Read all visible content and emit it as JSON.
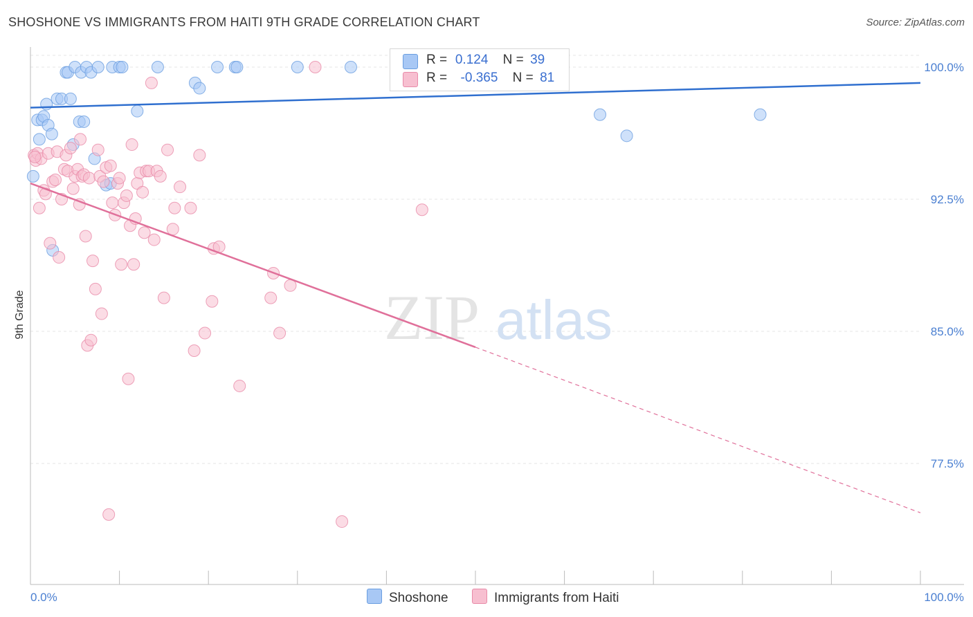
{
  "title": "SHOSHONE VS IMMIGRANTS FROM HAITI 9TH GRADE CORRELATION CHART",
  "source": "Source: ZipAtlas.com",
  "watermark": {
    "zip": "ZIP",
    "atlas": "atlas"
  },
  "legend": {
    "r_label": "R =",
    "n_label": "N =",
    "rows": [
      {
        "r": "0.124",
        "n": "39",
        "color": "#a8c8f5",
        "border": "#6a9ee0"
      },
      {
        "r": "-0.365",
        "n": "81",
        "color": "#f7bfd0",
        "border": "#e88aa8"
      }
    ]
  },
  "chart_data": {
    "type": "scatter",
    "title": "SHOSHONE VS IMMIGRANTS FROM HAITI 9TH GRADE CORRELATION CHART",
    "xlabel": "",
    "ylabel": "9th Grade",
    "xlim": [
      0,
      100
    ],
    "ylim": [
      71.0,
      101.0
    ],
    "x_tick_labels": [
      "0.0%",
      "100.0%"
    ],
    "y_ticks": [
      77.5,
      85.0,
      92.5,
      100.0
    ],
    "y_tick_labels": [
      "77.5%",
      "85.0%",
      "92.5%",
      "100.0%"
    ],
    "grid": true,
    "legend_position": "top-center",
    "series": [
      {
        "name": "Shoshone",
        "color": "#6a9ee0",
        "fill": "#a8c8f5",
        "trend": {
          "x0": 0,
          "y0": 97.7,
          "x1": 100,
          "y1": 99.1
        },
        "points": [
          [
            0.3,
            93.8
          ],
          [
            0.8,
            97.0
          ],
          [
            1.0,
            95.9
          ],
          [
            1.3,
            97.0
          ],
          [
            1.5,
            97.2
          ],
          [
            1.8,
            97.9
          ],
          [
            2.0,
            96.7
          ],
          [
            2.4,
            96.2
          ],
          [
            2.5,
            89.6
          ],
          [
            3.0,
            98.2
          ],
          [
            3.5,
            98.2
          ],
          [
            4.0,
            99.7
          ],
          [
            4.2,
            99.7
          ],
          [
            4.5,
            98.2
          ],
          [
            4.8,
            95.6
          ],
          [
            5.0,
            100.0
          ],
          [
            5.5,
            96.9
          ],
          [
            5.7,
            99.7
          ],
          [
            6.0,
            96.9
          ],
          [
            6.3,
            100.0
          ],
          [
            6.8,
            99.7
          ],
          [
            7.2,
            94.8
          ],
          [
            7.6,
            100.0
          ],
          [
            8.5,
            93.3
          ],
          [
            9.0,
            93.4
          ],
          [
            9.2,
            100.0
          ],
          [
            10.0,
            100.0
          ],
          [
            10.3,
            100.0
          ],
          [
            12.0,
            97.5
          ],
          [
            14.3,
            100.0
          ],
          [
            18.5,
            99.1
          ],
          [
            19.0,
            98.8
          ],
          [
            21.0,
            100.0
          ],
          [
            23.0,
            100.0
          ],
          [
            23.2,
            100.0
          ],
          [
            30.0,
            100.0
          ],
          [
            36.0,
            100.0
          ],
          [
            64.0,
            97.3
          ],
          [
            67.0,
            96.1
          ],
          [
            82.0,
            97.3
          ]
        ]
      },
      {
        "name": "Immigrants from Haiti",
        "color": "#e88aa8",
        "fill": "#f7bfd0",
        "trend": {
          "x0": 0,
          "y0": 93.4,
          "x1": 50,
          "y1": 84.1,
          "dash_to_x": 100,
          "dash_to_y": 74.7
        },
        "points": [
          [
            0.4,
            95.0
          ],
          [
            0.6,
            94.7
          ],
          [
            0.8,
            95.1
          ],
          [
            1.0,
            92.0
          ],
          [
            1.2,
            94.8
          ],
          [
            1.5,
            93.0
          ],
          [
            1.7,
            92.8
          ],
          [
            2.0,
            95.1
          ],
          [
            2.2,
            90.0
          ],
          [
            2.5,
            93.5
          ],
          [
            2.8,
            93.6
          ],
          [
            3.0,
            95.2
          ],
          [
            3.2,
            89.2
          ],
          [
            3.5,
            92.5
          ],
          [
            3.8,
            94.2
          ],
          [
            4.0,
            95.0
          ],
          [
            4.2,
            94.1
          ],
          [
            4.5,
            95.4
          ],
          [
            4.8,
            93.1
          ],
          [
            5.0,
            93.8
          ],
          [
            5.3,
            94.2
          ],
          [
            5.5,
            92.2
          ],
          [
            5.6,
            95.9
          ],
          [
            5.8,
            93.8
          ],
          [
            6.0,
            93.9
          ],
          [
            6.2,
            90.4
          ],
          [
            6.4,
            84.2
          ],
          [
            6.6,
            93.7
          ],
          [
            6.8,
            84.5
          ],
          [
            7.0,
            89.0
          ],
          [
            7.3,
            87.4
          ],
          [
            7.6,
            95.3
          ],
          [
            7.8,
            93.8
          ],
          [
            8.0,
            86.0
          ],
          [
            8.2,
            93.5
          ],
          [
            8.5,
            94.3
          ],
          [
            8.8,
            74.6
          ],
          [
            9.0,
            94.4
          ],
          [
            9.2,
            92.3
          ],
          [
            9.5,
            91.6
          ],
          [
            9.8,
            93.4
          ],
          [
            10.0,
            93.7
          ],
          [
            10.2,
            88.8
          ],
          [
            10.5,
            92.3
          ],
          [
            10.8,
            92.7
          ],
          [
            11.0,
            82.3
          ],
          [
            11.2,
            91.0
          ],
          [
            11.4,
            95.6
          ],
          [
            11.6,
            88.8
          ],
          [
            11.8,
            91.4
          ],
          [
            12.0,
            93.4
          ],
          [
            12.3,
            94.0
          ],
          [
            12.6,
            92.9
          ],
          [
            12.8,
            90.6
          ],
          [
            13.0,
            94.1
          ],
          [
            13.3,
            94.1
          ],
          [
            13.6,
            99.1
          ],
          [
            13.9,
            90.2
          ],
          [
            14.2,
            94.1
          ],
          [
            14.6,
            93.8
          ],
          [
            15.0,
            86.9
          ],
          [
            15.4,
            95.3
          ],
          [
            16.0,
            90.8
          ],
          [
            16.2,
            92.0
          ],
          [
            16.8,
            93.2
          ],
          [
            18.0,
            92.0
          ],
          [
            18.4,
            83.9
          ],
          [
            19.0,
            95.0
          ],
          [
            19.6,
            84.9
          ],
          [
            20.4,
            86.7
          ],
          [
            20.6,
            89.7
          ],
          [
            21.2,
            89.8
          ],
          [
            23.5,
            81.9
          ],
          [
            27.0,
            86.9
          ],
          [
            27.3,
            88.3
          ],
          [
            28.0,
            84.9
          ],
          [
            29.2,
            87.6
          ],
          [
            32.0,
            100.0
          ],
          [
            35.0,
            74.2
          ],
          [
            44.0,
            91.9
          ],
          [
            0.5,
            94.9
          ]
        ]
      }
    ]
  }
}
